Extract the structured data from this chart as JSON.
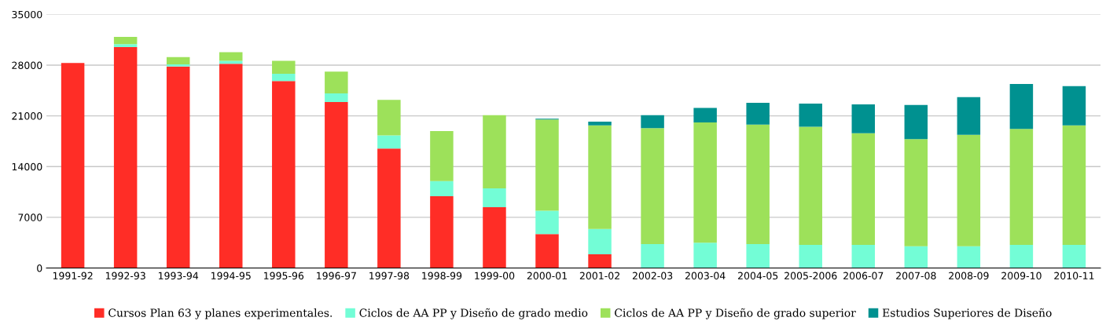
{
  "chart_data": {
    "type": "bar",
    "stacked": true,
    "categories": [
      "1991-92",
      "1992-93",
      "1993-94",
      "1994-95",
      "1995-96",
      "1996-97",
      "1997-98",
      "1998-99",
      "1999-00",
      "2000-01",
      "2001-02",
      "2002-03",
      "2003-04",
      "2004-05",
      "2005-2006",
      "2006-07",
      "2007-08",
      "2008-09",
      "2009-10",
      "2010-11"
    ],
    "series": [
      {
        "name": "Cursos Plan 63 y planes experimentales.",
        "color": "#ff2d26",
        "values": [
          28300,
          30500,
          27800,
          28200,
          25800,
          22900,
          16500,
          9900,
          8400,
          4700,
          1900,
          0,
          0,
          0,
          0,
          0,
          0,
          0,
          0,
          0
        ]
      },
      {
        "name": "Ciclos de AA PP y Diseño de grado medio",
        "color": "#73fdd6",
        "values": [
          0,
          400,
          300,
          400,
          1000,
          1200,
          1800,
          2100,
          2600,
          3200,
          3500,
          3300,
          3500,
          3300,
          3200,
          3200,
          3000,
          3000,
          3200,
          3200
        ]
      },
      {
        "name": "Ciclos de AA PP y Diseño de grado superior",
        "color": "#9de15a",
        "values": [
          0,
          1000,
          1000,
          1200,
          1800,
          3000,
          4900,
          6900,
          10100,
          12600,
          14300,
          16000,
          16600,
          16500,
          16300,
          15400,
          14800,
          15400,
          16000,
          16500
        ]
      },
      {
        "name": "Estudios Superiores de Diseño",
        "color": "#009190",
        "values": [
          0,
          0,
          0,
          0,
          0,
          0,
          0,
          0,
          0,
          100,
          500,
          1800,
          2000,
          3000,
          3200,
          4000,
          4700,
          5200,
          6200,
          5400
        ]
      }
    ],
    "ylim": [
      0,
      35000
    ],
    "yticks": [
      0,
      7000,
      14000,
      21000,
      28000,
      35000
    ],
    "grid": "y",
    "legend": "bottom"
  }
}
